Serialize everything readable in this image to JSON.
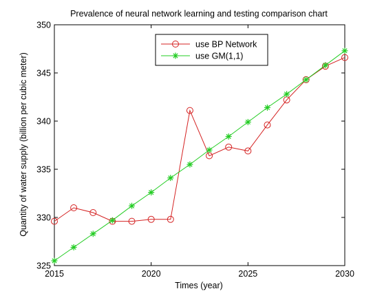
{
  "chart_data": {
    "type": "line",
    "title": "Prevalence of neural network learning and testing comparison chart",
    "xlabel": "Times (year)",
    "ylabel": "Quantity of water supply (billion per cubic meter)",
    "xlim": [
      2015,
      2030
    ],
    "ylim": [
      325,
      350
    ],
    "xticks": [
      "2015",
      "2020",
      "2025",
      "2030"
    ],
    "yticks": [
      "325",
      "330",
      "335",
      "340",
      "345",
      "350"
    ],
    "grid": false,
    "legend_position": "top-center",
    "x": [
      2015,
      2016,
      2017,
      2018,
      2019,
      2020,
      2021,
      2022,
      2023,
      2024,
      2025,
      2026,
      2027,
      2028,
      2029,
      2030
    ],
    "series": [
      {
        "name": "use BP Network",
        "color": "#d42020",
        "marker": "circle",
        "values": [
          329.6,
          331.0,
          330.5,
          329.6,
          329.6,
          329.8,
          329.8,
          341.1,
          336.4,
          337.3,
          336.9,
          339.6,
          342.2,
          344.3,
          345.7,
          346.6
        ]
      },
      {
        "name": "use GM(1,1)",
        "color": "#22cc22",
        "marker": "star",
        "values": [
          325.5,
          326.9,
          328.3,
          329.7,
          331.2,
          332.6,
          334.1,
          335.5,
          337.0,
          338.4,
          339.9,
          341.4,
          342.8,
          344.3,
          345.8,
          347.3
        ]
      }
    ]
  }
}
